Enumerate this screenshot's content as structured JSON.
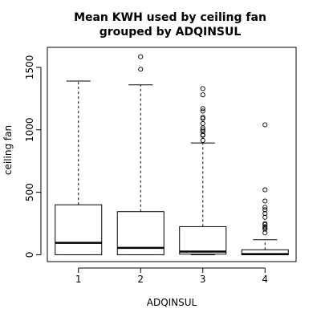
{
  "chart_data": {
    "type": "box",
    "title_lines": [
      "Mean KWH used by ceiling fan",
      "grouped by ADQINSUL"
    ],
    "xlabel": "ADQINSUL",
    "ylabel": "ceiling fan",
    "categories": [
      "1",
      "2",
      "3",
      "4"
    ],
    "ylim": [
      -55,
      1660
    ],
    "yticks": [
      0,
      500,
      1000,
      1500
    ],
    "ytick_labels": [
      "0",
      "500",
      "1000",
      "1500"
    ],
    "boxes": [
      {
        "category": "1",
        "whisker_low": 0,
        "q1": 0,
        "median": 95,
        "q3": 400,
        "whisker_high": 1390,
        "outliers": []
      },
      {
        "category": "2",
        "whisker_low": 0,
        "q1": 0,
        "median": 55,
        "q3": 345,
        "whisker_high": 1360,
        "outliers": [
          1485,
          1585
        ]
      },
      {
        "category": "3",
        "whisker_low": 0,
        "q1": 5,
        "median": 25,
        "q3": 225,
        "whisker_high": 895,
        "outliers": [
          915,
          955,
          960,
          985,
          1000,
          1015,
          1050,
          1090,
          1100,
          1150,
          1170,
          1280,
          1330
        ]
      },
      {
        "category": "4",
        "whisker_low": 0,
        "q1": 0,
        "median": 5,
        "q3": 40,
        "whisker_high": 120,
        "outliers": [
          175,
          205,
          215,
          225,
          240,
          250,
          300,
          330,
          360,
          380,
          430,
          520,
          1040
        ]
      }
    ],
    "grid": false,
    "legend": "none",
    "colors": {
      "box_fill": "#ffffff",
      "line": "#000000"
    }
  }
}
